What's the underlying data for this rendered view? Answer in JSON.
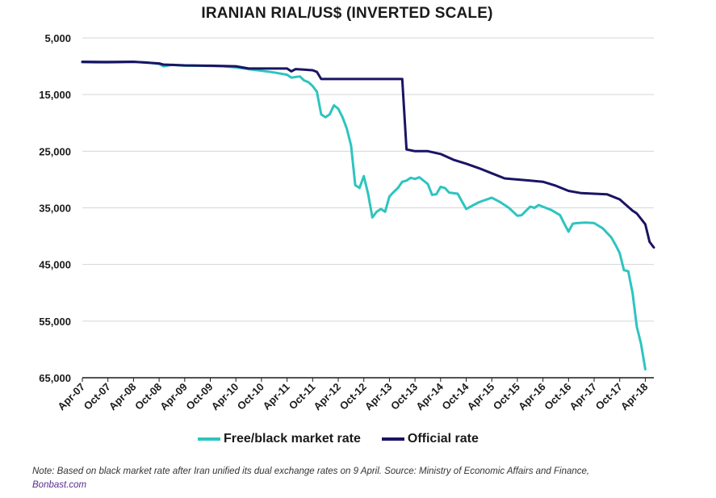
{
  "chart_data": {
    "type": "line",
    "title": "IRANIAN RIAL/US$ (INVERTED SCALE)",
    "y_inverted": true,
    "ylim": [
      5000,
      65000
    ],
    "yticks": [
      5000,
      15000,
      25000,
      35000,
      45000,
      55000,
      65000
    ],
    "ytick_labels": [
      "5,000",
      "15,000",
      "25,000",
      "35,000",
      "45,000",
      "55,000",
      "65,000"
    ],
    "grid": "horizontal",
    "x_tick_labels": [
      "Apr-07",
      "Oct-07",
      "Apr-08",
      "Oct-08",
      "Apr-09",
      "Oct-09",
      "Apr-10",
      "Oct-10",
      "Apr-11",
      "Oct-11",
      "Apr-12",
      "Oct-12",
      "Apr-13",
      "Oct-13",
      "Apr-14",
      "Oct-14",
      "Apr-15",
      "Oct-15",
      "Apr-16",
      "Oct-16",
      "Apr-17",
      "Oct-17",
      "Apr-18"
    ],
    "x_start": "Apr-07",
    "x_end": "Jun-18",
    "legend_position": "bottom",
    "series": [
      {
        "name": "Free/black market rate",
        "color": "#2ec4c0",
        "points": [
          [
            "Apr-07",
            9300
          ],
          [
            "Jul-07",
            9350
          ],
          [
            "Oct-07",
            9350
          ],
          [
            "Jan-08",
            9300
          ],
          [
            "Apr-08",
            9250
          ],
          [
            "Jul-08",
            9300
          ],
          [
            "Oct-08",
            9600
          ],
          [
            "Nov-08",
            10000
          ],
          [
            "Jan-09",
            9750
          ],
          [
            "Apr-09",
            9900
          ],
          [
            "Jul-09",
            9900
          ],
          [
            "Oct-09",
            9950
          ],
          [
            "Jan-10",
            10000
          ],
          [
            "Apr-10",
            10200
          ],
          [
            "Jul-10",
            10500
          ],
          [
            "Oct-10",
            10800
          ],
          [
            "Jan-11",
            11100
          ],
          [
            "Apr-11",
            11500
          ],
          [
            "May-11",
            12000
          ],
          [
            "Jul-11",
            11800
          ],
          [
            "Aug-11",
            12500
          ],
          [
            "Sep-11",
            12800
          ],
          [
            "Oct-11",
            13500
          ],
          [
            "Nov-11",
            14500
          ],
          [
            "Dec-11",
            18500
          ],
          [
            "Jan-12",
            19000
          ],
          [
            "Feb-12",
            18500
          ],
          [
            "Mar-12",
            16900
          ],
          [
            "Apr-12",
            17500
          ],
          [
            "May-12",
            19000
          ],
          [
            "Jun-12",
            21000
          ],
          [
            "Jul-12",
            24000
          ],
          [
            "Aug-12",
            31000
          ],
          [
            "Sep-12",
            31500
          ],
          [
            "Oct-12",
            29400
          ],
          [
            "Nov-12",
            32500
          ],
          [
            "Dec-12",
            36700
          ],
          [
            "Jan-13",
            35700
          ],
          [
            "Feb-13",
            35200
          ],
          [
            "Mar-13",
            35700
          ],
          [
            "Apr-13",
            33000
          ],
          [
            "May-13",
            32200
          ],
          [
            "Jun-13",
            31500
          ],
          [
            "Jul-13",
            30400
          ],
          [
            "Aug-13",
            30200
          ],
          [
            "Sep-13",
            29700
          ],
          [
            "Oct-13",
            29900
          ],
          [
            "Nov-13",
            29600
          ],
          [
            "Jan-14",
            30800
          ],
          [
            "Feb-14",
            32700
          ],
          [
            "Mar-14",
            32600
          ],
          [
            "Apr-14",
            31300
          ],
          [
            "May-14",
            31500
          ],
          [
            "Jun-14",
            32300
          ],
          [
            "Aug-14",
            32500
          ],
          [
            "Oct-14",
            35200
          ],
          [
            "Jan-15",
            34000
          ],
          [
            "Apr-15",
            33200
          ],
          [
            "Jun-15",
            34000
          ],
          [
            "Aug-15",
            35000
          ],
          [
            "Oct-15",
            36400
          ],
          [
            "Nov-15",
            36300
          ],
          [
            "Jan-16",
            34800
          ],
          [
            "Feb-16",
            35000
          ],
          [
            "Mar-16",
            34500
          ],
          [
            "Apr-16",
            34800
          ],
          [
            "Jun-16",
            35400
          ],
          [
            "Aug-16",
            36300
          ],
          [
            "Sep-16",
            37800
          ],
          [
            "Oct-16",
            39200
          ],
          [
            "Nov-16",
            37800
          ],
          [
            "Dec-16",
            37700
          ],
          [
            "Feb-17",
            37600
          ],
          [
            "Apr-17",
            37700
          ],
          [
            "Jun-17",
            38600
          ],
          [
            "Aug-17",
            40200
          ],
          [
            "Sep-17",
            41500
          ],
          [
            "Oct-17",
            43000
          ],
          [
            "Nov-17",
            46000
          ],
          [
            "Dec-17",
            46200
          ],
          [
            "Jan-18",
            50000
          ],
          [
            "Feb-18",
            56000
          ],
          [
            "Mar-18",
            59000
          ],
          [
            "Apr-18",
            63500
          ]
        ]
      },
      {
        "name": "Official rate",
        "color": "#1a1464",
        "points": [
          [
            "Apr-07",
            9200
          ],
          [
            "Oct-07",
            9250
          ],
          [
            "Apr-08",
            9200
          ],
          [
            "Oct-08",
            9500
          ],
          [
            "Nov-08",
            9700
          ],
          [
            "Apr-09",
            9850
          ],
          [
            "Oct-09",
            9900
          ],
          [
            "Apr-10",
            10000
          ],
          [
            "Jul-10",
            10400
          ],
          [
            "Oct-10",
            10400
          ],
          [
            "Apr-11",
            10400
          ],
          [
            "May-11",
            10900
          ],
          [
            "Jun-11",
            10500
          ],
          [
            "Aug-11",
            10600
          ],
          [
            "Oct-11",
            10700
          ],
          [
            "Nov-11",
            11000
          ],
          [
            "Dec-11",
            12260
          ],
          [
            "Apr-12",
            12260
          ],
          [
            "Apr-13",
            12260
          ],
          [
            "Jul-13",
            12260
          ],
          [
            "Aug-13",
            24700
          ],
          [
            "Oct-13",
            25000
          ],
          [
            "Jan-14",
            25000
          ],
          [
            "Apr-14",
            25500
          ],
          [
            "Jul-14",
            26500
          ],
          [
            "Oct-14",
            27200
          ],
          [
            "Jan-15",
            28000
          ],
          [
            "Apr-15",
            28900
          ],
          [
            "Jul-15",
            29800
          ],
          [
            "Oct-15",
            30000
          ],
          [
            "Jan-16",
            30200
          ],
          [
            "Apr-16",
            30400
          ],
          [
            "Jul-16",
            31100
          ],
          [
            "Oct-16",
            32000
          ],
          [
            "Jan-17",
            32400
          ],
          [
            "Apr-17",
            32500
          ],
          [
            "Jul-17",
            32600
          ],
          [
            "Oct-17",
            33500
          ],
          [
            "Jan-18",
            35500
          ],
          [
            "Feb-18",
            36000
          ],
          [
            "Apr-18",
            37900
          ],
          [
            "May-18",
            41000
          ],
          [
            "Jun-18",
            42000
          ]
        ]
      }
    ]
  },
  "note": {
    "text": "Note: Based on black market rate after Iran unified its dual exchange rates on 9 April. Source: Ministry of Economic Affairs and Finance,",
    "source": "Bonbast.com"
  }
}
